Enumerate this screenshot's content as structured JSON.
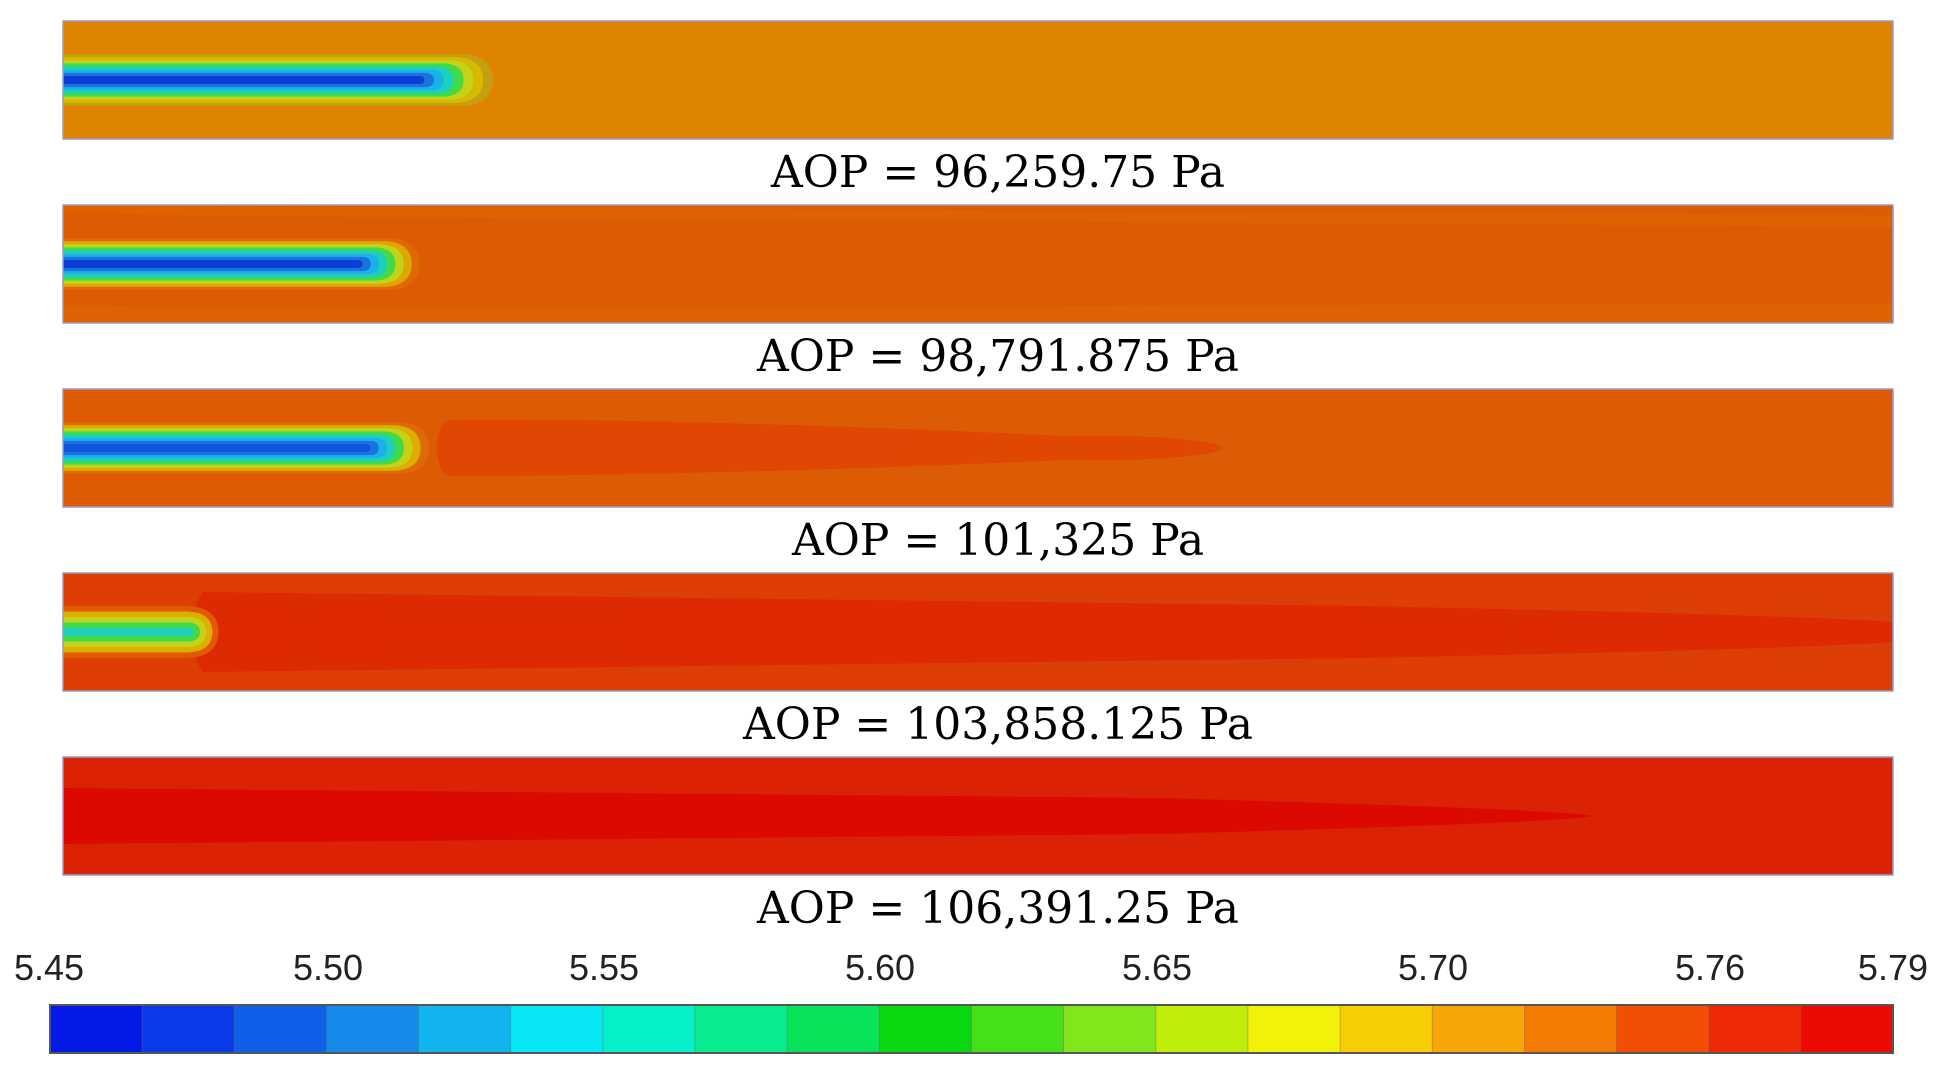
{
  "chart_data": {
    "type": "heatmap",
    "title": "",
    "panels": [
      {
        "label": "AOP = 96,259.75 Pa",
        "background_color": "#DE8400",
        "plume_colors": [
          "#C49F10",
          "#D9B800",
          "#C2D41A",
          "#3FDB4A",
          "#1FCFBE",
          "#18B2E8",
          "#1C73E0",
          "#0C3FD6"
        ],
        "plume_length_fraction": 0.235,
        "secondary_band": null
      },
      {
        "label": "AOP = 98,791.875 Pa",
        "background_color": "#DD5C03",
        "plume_colors": [
          "#DD6A02",
          "#DDA800",
          "#C2D41A",
          "#3FDB4A",
          "#1FCFBE",
          "#18B2E8",
          "#1C73E0",
          "#0C3FD6"
        ],
        "plume_length_fraction": 0.195,
        "secondary_band": "#E06600"
      },
      {
        "label": "AOP = 101,325 Pa",
        "background_color": "#DE5B05",
        "plume_colors": [
          "#DE6A05",
          "#DDAE00",
          "#C2D41A",
          "#3FDB4A",
          "#1FCFBE",
          "#18B2E8",
          "#1C73E0",
          "#0F55D8"
        ],
        "plume_length_fraction": 0.2,
        "secondary_band": "#E04703"
      },
      {
        "label": "AOP = 103,858.125 Pa",
        "background_color": "#DD3E05",
        "plume_colors": [
          "#DF5A03",
          "#DDB000",
          "#C2D41A",
          "#3FDB4A",
          "#1FCFBE"
        ],
        "plume_length_fraction": 0.085,
        "secondary_band": "#DE2A02"
      },
      {
        "label": "AOP = 106,391.25 Pa",
        "background_color": "#DC2205",
        "plume_colors": [],
        "plume_length_fraction": 0,
        "secondary_band": "#DB0900"
      }
    ],
    "colorbar": {
      "min": 5.45,
      "max": 5.79,
      "tick_labels": [
        "5.45",
        "5.50",
        "5.55",
        "5.60",
        "5.65",
        "5.70",
        "5.76",
        "5.79"
      ],
      "colors": [
        "#0419E6",
        "#0A3BE8",
        "#0F60E8",
        "#168AEA",
        "#11B4EE",
        "#08E8F4",
        "#05F0C8",
        "#06EC8F",
        "#08E35A",
        "#0AD80E",
        "#45E017",
        "#83E61C",
        "#BDED08",
        "#F1F10A",
        "#F7CD04",
        "#F7A606",
        "#F57B04",
        "#F24E06",
        "#EE2A06",
        "#EC0B03"
      ]
    }
  }
}
